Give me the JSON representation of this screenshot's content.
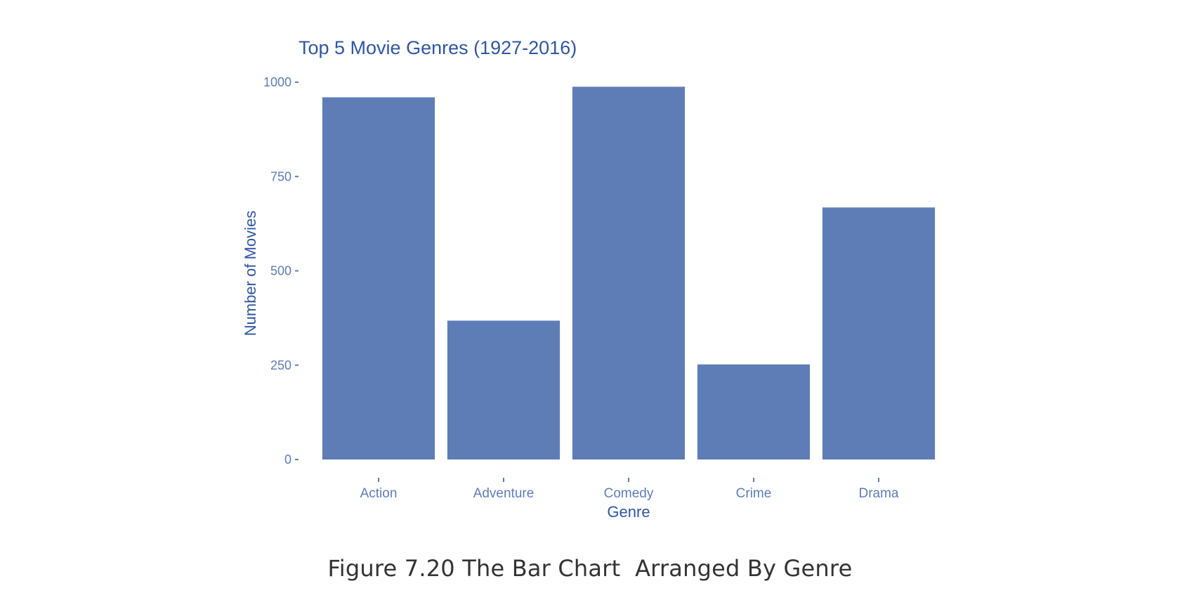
{
  "chart_data": {
    "type": "bar",
    "title": "Top 5 Movie Genres (1927-2016)",
    "xlabel": "Genre",
    "ylabel": "Number of Movies",
    "categories": [
      "Action",
      "Adventure",
      "Comedy",
      "Crime",
      "Drama"
    ],
    "values": [
      960,
      368,
      988,
      252,
      668
    ],
    "ylim": [
      0,
      1000
    ],
    "yticks": [
      0,
      250,
      500,
      750,
      1000
    ],
    "ytick_labels": [
      "0",
      "250",
      "500",
      "750",
      "1000"
    ],
    "grid": false,
    "legend": "none",
    "colors": {
      "bar": "#5e7db7",
      "title": "#2f56a0",
      "axis_label": "#2f56a0",
      "tick_label": "#5e7db7",
      "tick": "#5e7db7"
    }
  },
  "caption": "Figure 7.20 The Bar Chart  Arranged By Genre"
}
